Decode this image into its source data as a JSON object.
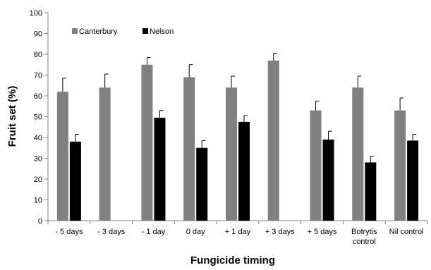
{
  "chart_data": {
    "type": "bar",
    "title": "",
    "xlabel": "Fungicide timing",
    "ylabel": "Fruit set (%)",
    "ylim": [
      0,
      100
    ],
    "yticks": [
      0,
      10,
      20,
      30,
      40,
      50,
      60,
      70,
      80,
      90,
      100
    ],
    "grid": false,
    "legend_position": "top-left",
    "categories": [
      [
        "- 5 days"
      ],
      [
        "- 3 days"
      ],
      [
        "- 1 day"
      ],
      [
        "0 day"
      ],
      [
        "+ 1 day"
      ],
      [
        "+ 3 days"
      ],
      [
        "+ 5 days"
      ],
      [
        "Botrytis",
        "control"
      ],
      [
        "Nil control"
      ]
    ],
    "series": [
      {
        "name": "Canterbury",
        "color": "#808080",
        "values": [
          62,
          64,
          75,
          69,
          64,
          77,
          53,
          64,
          53
        ],
        "error": [
          6.5,
          6.5,
          3.5,
          6,
          5.5,
          3.5,
          4.5,
          5.5,
          6
        ]
      },
      {
        "name": "Nelson",
        "color": "#000000",
        "values": [
          38,
          null,
          49.5,
          35,
          47.5,
          null,
          39,
          28,
          38.5
        ],
        "error": [
          3.5,
          null,
          3.5,
          3.5,
          3,
          null,
          4,
          3,
          3
        ]
      }
    ]
  }
}
